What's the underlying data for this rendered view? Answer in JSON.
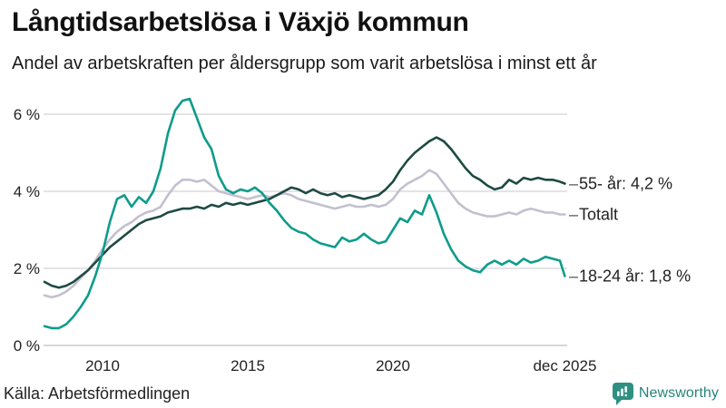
{
  "header": {
    "title": "Långtidsarbetslösa i Växjö kommun",
    "subtitle": "Andel av arbetskraften per åldersgrupp som varit arbetslösa i minst ett år"
  },
  "footer": {
    "source": "Källa: Arbetsförmedlingen",
    "brand": "Newsworthy",
    "brand_color": "#2e9082"
  },
  "legend": {
    "connector": "–"
  },
  "chart_data": {
    "type": "line",
    "title": "Långtidsarbetslösa i Växjö kommun",
    "subtitle": "Andel av arbetskraften per åldersgrupp som varit arbetslösa i minst ett år",
    "xlabel": "",
    "ylabel": "",
    "xlim": [
      2008,
      2025.92
    ],
    "ylim": [
      0,
      6.8
    ],
    "grid": true,
    "legend_position": "right-end-labels",
    "yticks": [
      {
        "value": 0,
        "label": "0 %"
      },
      {
        "value": 2,
        "label": "2 %"
      },
      {
        "value": 4,
        "label": "4 %"
      },
      {
        "value": 6,
        "label": "6 %"
      }
    ],
    "xticks": [
      {
        "value": 2010,
        "label": "2010"
      },
      {
        "value": 2015,
        "label": "2015"
      },
      {
        "value": 2020,
        "label": "2020"
      },
      {
        "value": 2025.92,
        "label": "dec 2025"
      }
    ],
    "x": [
      2008,
      2008.25,
      2008.5,
      2008.75,
      2009,
      2009.25,
      2009.5,
      2009.75,
      2010,
      2010.25,
      2010.5,
      2010.75,
      2011,
      2011.25,
      2011.5,
      2011.75,
      2012,
      2012.25,
      2012.5,
      2012.75,
      2013,
      2013.25,
      2013.5,
      2013.75,
      2014,
      2014.25,
      2014.5,
      2014.75,
      2015,
      2015.25,
      2015.5,
      2015.75,
      2016,
      2016.25,
      2016.5,
      2016.75,
      2017,
      2017.25,
      2017.5,
      2017.75,
      2018,
      2018.25,
      2018.5,
      2018.75,
      2019,
      2019.25,
      2019.5,
      2019.75,
      2020,
      2020.25,
      2020.5,
      2020.75,
      2021,
      2021.25,
      2021.5,
      2021.75,
      2022,
      2022.25,
      2022.5,
      2022.75,
      2023,
      2023.25,
      2023.5,
      2023.75,
      2024,
      2024.25,
      2024.5,
      2024.75,
      2025,
      2025.25,
      2025.5,
      2025.75,
      2025.92
    ],
    "series": [
      {
        "name": "Totalt",
        "end_label": "Totalt",
        "end_value": 3.4,
        "color": "#c2c0d0",
        "values": [
          1.3,
          1.25,
          1.3,
          1.4,
          1.55,
          1.75,
          1.95,
          2.2,
          2.5,
          2.75,
          2.95,
          3.1,
          3.2,
          3.35,
          3.45,
          3.5,
          3.6,
          3.9,
          4.15,
          4.3,
          4.3,
          4.25,
          4.3,
          4.15,
          4.0,
          3.95,
          3.9,
          3.85,
          3.8,
          3.85,
          3.9,
          3.85,
          3.9,
          3.95,
          3.9,
          3.8,
          3.75,
          3.7,
          3.65,
          3.6,
          3.55,
          3.6,
          3.65,
          3.6,
          3.6,
          3.65,
          3.6,
          3.65,
          3.8,
          4.05,
          4.2,
          4.3,
          4.4,
          4.55,
          4.45,
          4.2,
          3.95,
          3.7,
          3.55,
          3.45,
          3.4,
          3.35,
          3.35,
          3.4,
          3.45,
          3.4,
          3.5,
          3.55,
          3.5,
          3.45,
          3.45,
          3.4,
          3.4
        ]
      },
      {
        "name": "55- år",
        "end_label": "55- år: 4,2 %",
        "end_value": 4.2,
        "color": "#1d4a42",
        "values": [
          1.65,
          1.55,
          1.5,
          1.55,
          1.65,
          1.8,
          1.95,
          2.15,
          2.35,
          2.55,
          2.7,
          2.85,
          3.0,
          3.15,
          3.25,
          3.3,
          3.35,
          3.45,
          3.5,
          3.55,
          3.55,
          3.6,
          3.55,
          3.65,
          3.6,
          3.7,
          3.65,
          3.7,
          3.65,
          3.7,
          3.75,
          3.8,
          3.9,
          4.0,
          4.1,
          4.05,
          3.95,
          4.05,
          3.95,
          3.9,
          3.95,
          3.85,
          3.9,
          3.85,
          3.8,
          3.85,
          3.9,
          4.05,
          4.25,
          4.55,
          4.8,
          5.0,
          5.15,
          5.3,
          5.4,
          5.3,
          5.1,
          4.85,
          4.6,
          4.4,
          4.3,
          4.15,
          4.05,
          4.1,
          4.3,
          4.2,
          4.35,
          4.3,
          4.35,
          4.3,
          4.3,
          4.25,
          4.2
        ]
      },
      {
        "name": "18-24 år",
        "end_label": "18-24 år: 1,8 %",
        "end_value": 1.8,
        "color": "#0e9c8b",
        "values": [
          0.5,
          0.45,
          0.45,
          0.55,
          0.75,
          1.0,
          1.3,
          1.8,
          2.4,
          3.2,
          3.8,
          3.9,
          3.6,
          3.85,
          3.7,
          4.0,
          4.6,
          5.5,
          6.1,
          6.35,
          6.4,
          5.9,
          5.4,
          5.1,
          4.4,
          4.05,
          3.95,
          4.05,
          4.0,
          4.1,
          3.95,
          3.7,
          3.5,
          3.25,
          3.05,
          2.95,
          2.9,
          2.75,
          2.65,
          2.6,
          2.55,
          2.8,
          2.7,
          2.75,
          2.9,
          2.75,
          2.65,
          2.7,
          3.0,
          3.3,
          3.2,
          3.5,
          3.4,
          3.9,
          3.45,
          2.9,
          2.5,
          2.2,
          2.05,
          1.95,
          1.9,
          2.1,
          2.2,
          2.1,
          2.2,
          2.1,
          2.25,
          2.15,
          2.2,
          2.3,
          2.25,
          2.2,
          1.8
        ]
      }
    ]
  }
}
